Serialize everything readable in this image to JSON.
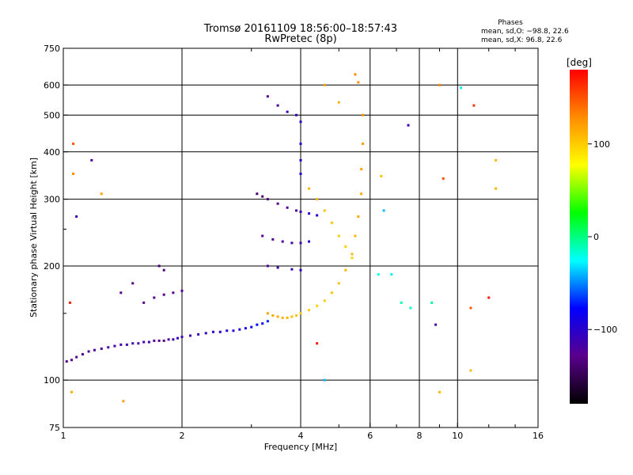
{
  "chart_data": {
    "type": "scatter",
    "title": "Tromsø 20161109 18:56:00–18:57:43",
    "subtitle": "RwPretec (8p)",
    "xlabel": "Frequency [MHz]",
    "ylabel": "Stationary phase Virtual Height [km]",
    "x_scale": "log",
    "y_scale": "log",
    "xlim": [
      1,
      16
    ],
    "ylim": [
      75,
      750
    ],
    "x_ticks": [
      1,
      2,
      4,
      6,
      8,
      10,
      16
    ],
    "x_tick_labels": [
      "1",
      "2",
      "4",
      "6",
      "8",
      "10",
      "16"
    ],
    "x_grid": [
      2,
      4,
      6,
      8,
      10
    ],
    "x_minor_ticks": [
      3,
      5,
      7,
      9,
      12,
      14
    ],
    "y_ticks": [
      75,
      100,
      200,
      300,
      400,
      500,
      600,
      750
    ],
    "y_tick_labels": [
      "75",
      "100",
      "200",
      "300",
      "400",
      "500",
      "600",
      "750"
    ],
    "y_grid": [
      100,
      200,
      300,
      400,
      500,
      600
    ],
    "y_minor_ticks": [
      150,
      250
    ],
    "grid": true,
    "stats": {
      "header": "Phases",
      "line_o": "mean, sd,O: −98.8, 22.6",
      "line_x": "mean, sd,X:  96.8, 22.6"
    },
    "colorbar": {
      "label": "[deg]",
      "range": [
        -180,
        180
      ],
      "tick_values": [
        100,
        0,
        -100
      ],
      "tick_labels": [
        "100",
        "0",
        "−100"
      ],
      "colormap": "rainbow",
      "colors": [
        "#000000",
        "#5a008c",
        "#0000ff",
        "#00ffff",
        "#00ff00",
        "#ffff00",
        "#ff8c00",
        "#ff0000"
      ]
    },
    "series": [
      {
        "name": "",
        "points": [
          {
            "x": 1.02,
            "y": 112,
            "phase": -130
          },
          {
            "x": 1.05,
            "y": 113,
            "phase": -128
          },
          {
            "x": 1.08,
            "y": 115,
            "phase": -126
          },
          {
            "x": 1.12,
            "y": 117,
            "phase": -125
          },
          {
            "x": 1.16,
            "y": 119,
            "phase": -123
          },
          {
            "x": 1.2,
            "y": 120,
            "phase": -122
          },
          {
            "x": 1.25,
            "y": 121,
            "phase": -120
          },
          {
            "x": 1.3,
            "y": 122,
            "phase": -118
          },
          {
            "x": 1.35,
            "y": 123,
            "phase": -118
          },
          {
            "x": 1.4,
            "y": 124,
            "phase": -116
          },
          {
            "x": 1.45,
            "y": 124,
            "phase": -115
          },
          {
            "x": 1.5,
            "y": 125,
            "phase": -115
          },
          {
            "x": 1.55,
            "y": 125,
            "phase": -114
          },
          {
            "x": 1.6,
            "y": 126,
            "phase": -113
          },
          {
            "x": 1.65,
            "y": 126,
            "phase": -112
          },
          {
            "x": 1.7,
            "y": 127,
            "phase": -125
          },
          {
            "x": 1.75,
            "y": 127,
            "phase": -130
          },
          {
            "x": 1.8,
            "y": 127,
            "phase": -128
          },
          {
            "x": 1.85,
            "y": 128,
            "phase": -120
          },
          {
            "x": 1.9,
            "y": 128,
            "phase": -112
          },
          {
            "x": 1.95,
            "y": 129,
            "phase": -105
          },
          {
            "x": 2.0,
            "y": 130,
            "phase": -110
          },
          {
            "x": 2.1,
            "y": 131,
            "phase": -108
          },
          {
            "x": 2.2,
            "y": 132,
            "phase": -105
          },
          {
            "x": 2.3,
            "y": 133,
            "phase": -104
          },
          {
            "x": 2.4,
            "y": 134,
            "phase": -102
          },
          {
            "x": 2.5,
            "y": 134,
            "phase": -100
          },
          {
            "x": 2.6,
            "y": 135,
            "phase": -98
          },
          {
            "x": 2.7,
            "y": 135,
            "phase": -97
          },
          {
            "x": 2.8,
            "y": 136,
            "phase": -95
          },
          {
            "x": 2.9,
            "y": 137,
            "phase": -90
          },
          {
            "x": 3.0,
            "y": 138,
            "phase": -85
          },
          {
            "x": 3.1,
            "y": 140,
            "phase": -80
          },
          {
            "x": 3.2,
            "y": 141,
            "phase": -75
          },
          {
            "x": 3.3,
            "y": 143,
            "phase": -70
          },
          {
            "x": 1.6,
            "y": 160,
            "phase": -130
          },
          {
            "x": 1.7,
            "y": 165,
            "phase": -132
          },
          {
            "x": 1.8,
            "y": 168,
            "phase": -128
          },
          {
            "x": 1.9,
            "y": 170,
            "phase": -126
          },
          {
            "x": 2.0,
            "y": 172,
            "phase": -124
          },
          {
            "x": 1.75,
            "y": 200,
            "phase": -140
          },
          {
            "x": 1.8,
            "y": 195,
            "phase": -135
          },
          {
            "x": 1.5,
            "y": 180,
            "phase": -130
          },
          {
            "x": 1.4,
            "y": 170,
            "phase": -125
          },
          {
            "x": 3.3,
            "y": 150,
            "phase": 120
          },
          {
            "x": 3.4,
            "y": 148,
            "phase": 118
          },
          {
            "x": 3.5,
            "y": 147,
            "phase": 115
          },
          {
            "x": 3.6,
            "y": 146,
            "phase": 112
          },
          {
            "x": 3.7,
            "y": 146,
            "phase": 110
          },
          {
            "x": 3.8,
            "y": 147,
            "phase": 108
          },
          {
            "x": 3.9,
            "y": 148,
            "phase": 105
          },
          {
            "x": 4.0,
            "y": 150,
            "phase": 102
          },
          {
            "x": 4.2,
            "y": 153,
            "phase": 100
          },
          {
            "x": 4.4,
            "y": 157,
            "phase": 98
          },
          {
            "x": 4.6,
            "y": 162,
            "phase": 100
          },
          {
            "x": 4.8,
            "y": 170,
            "phase": 102
          },
          {
            "x": 5.0,
            "y": 180,
            "phase": 105
          },
          {
            "x": 5.2,
            "y": 195,
            "phase": 108
          },
          {
            "x": 5.4,
            "y": 215,
            "phase": 110
          },
          {
            "x": 5.5,
            "y": 240,
            "phase": 112
          },
          {
            "x": 5.6,
            "y": 270,
            "phase": 115
          },
          {
            "x": 5.7,
            "y": 310,
            "phase": 118
          },
          {
            "x": 5.7,
            "y": 360,
            "phase": 120
          },
          {
            "x": 5.75,
            "y": 420,
            "phase": 122
          },
          {
            "x": 5.75,
            "y": 500,
            "phase": 125
          },
          {
            "x": 5.6,
            "y": 610,
            "phase": 128
          },
          {
            "x": 5.5,
            "y": 640,
            "phase": 130
          },
          {
            "x": 3.1,
            "y": 310,
            "phase": -140
          },
          {
            "x": 3.2,
            "y": 305,
            "phase": -138
          },
          {
            "x": 3.3,
            "y": 300,
            "phase": -135
          },
          {
            "x": 3.5,
            "y": 292,
            "phase": -130
          },
          {
            "x": 3.7,
            "y": 285,
            "phase": -125
          },
          {
            "x": 3.9,
            "y": 280,
            "phase": -118
          },
          {
            "x": 4.0,
            "y": 278,
            "phase": -110
          },
          {
            "x": 4.2,
            "y": 275,
            "phase": -100
          },
          {
            "x": 4.4,
            "y": 272,
            "phase": -90
          },
          {
            "x": 3.2,
            "y": 240,
            "phase": -130
          },
          {
            "x": 3.4,
            "y": 235,
            "phase": -125
          },
          {
            "x": 3.6,
            "y": 232,
            "phase": -120
          },
          {
            "x": 3.8,
            "y": 230,
            "phase": -115
          },
          {
            "x": 4.0,
            "y": 230,
            "phase": -110
          },
          {
            "x": 4.2,
            "y": 232,
            "phase": -100
          },
          {
            "x": 3.3,
            "y": 200,
            "phase": -120
          },
          {
            "x": 3.5,
            "y": 198,
            "phase": -115
          },
          {
            "x": 3.8,
            "y": 196,
            "phase": -110
          },
          {
            "x": 4.0,
            "y": 195,
            "phase": -105
          },
          {
            "x": 3.3,
            "y": 560,
            "phase": -125
          },
          {
            "x": 3.5,
            "y": 530,
            "phase": -120
          },
          {
            "x": 3.7,
            "y": 510,
            "phase": -115
          },
          {
            "x": 3.9,
            "y": 500,
            "phase": -110
          },
          {
            "x": 4.0,
            "y": 480,
            "phase": -105
          },
          {
            "x": 4.0,
            "y": 420,
            "phase": -100
          },
          {
            "x": 4.0,
            "y": 380,
            "phase": -100
          },
          {
            "x": 4.0,
            "y": 350,
            "phase": -98
          },
          {
            "x": 4.2,
            "y": 320,
            "phase": 110
          },
          {
            "x": 4.4,
            "y": 300,
            "phase": 108
          },
          {
            "x": 4.6,
            "y": 280,
            "phase": 105
          },
          {
            "x": 4.8,
            "y": 260,
            "phase": 102
          },
          {
            "x": 5.0,
            "y": 240,
            "phase": 100
          },
          {
            "x": 5.2,
            "y": 225,
            "phase": 98
          },
          {
            "x": 5.4,
            "y": 210,
            "phase": 96
          },
          {
            "x": 4.6,
            "y": 600,
            "phase": 118
          },
          {
            "x": 5.0,
            "y": 540,
            "phase": 112
          },
          {
            "x": 6.3,
            "y": 190,
            "phase": -20
          },
          {
            "x": 6.5,
            "y": 280,
            "phase": -40
          },
          {
            "x": 6.8,
            "y": 190,
            "phase": -30
          },
          {
            "x": 7.2,
            "y": 160,
            "phase": -10
          },
          {
            "x": 7.6,
            "y": 155,
            "phase": -15
          },
          {
            "x": 8.6,
            "y": 160,
            "phase": -5
          },
          {
            "x": 8.8,
            "y": 140,
            "phase": -120
          },
          {
            "x": 9.0,
            "y": 600,
            "phase": 130
          },
          {
            "x": 10.2,
            "y": 590,
            "phase": -30
          },
          {
            "x": 10.8,
            "y": 155,
            "phase": 150
          },
          {
            "x": 11.0,
            "y": 530,
            "phase": 160
          },
          {
            "x": 12.5,
            "y": 380,
            "phase": 110
          },
          {
            "x": 12.5,
            "y": 320,
            "phase": 110
          },
          {
            "x": 12.0,
            "y": 165,
            "phase": 170
          },
          {
            "x": 1.04,
            "y": 160,
            "phase": 170
          },
          {
            "x": 1.06,
            "y": 350,
            "phase": 130
          },
          {
            "x": 1.06,
            "y": 420,
            "phase": 150
          },
          {
            "x": 1.08,
            "y": 270,
            "phase": -110
          },
          {
            "x": 1.18,
            "y": 380,
            "phase": -120
          },
          {
            "x": 1.25,
            "y": 310,
            "phase": 120
          },
          {
            "x": 1.42,
            "y": 88,
            "phase": 120
          },
          {
            "x": 1.05,
            "y": 93,
            "phase": 115
          },
          {
            "x": 4.6,
            "y": 100,
            "phase": -40
          },
          {
            "x": 4.4,
            "y": 125,
            "phase": 170
          },
          {
            "x": 9.0,
            "y": 93,
            "phase": 110
          },
          {
            "x": 10.8,
            "y": 106,
            "phase": 110
          },
          {
            "x": 6.4,
            "y": 345,
            "phase": 105
          },
          {
            "x": 7.5,
            "y": 470,
            "phase": -110
          },
          {
            "x": 9.2,
            "y": 340,
            "phase": 150
          }
        ]
      }
    ]
  }
}
